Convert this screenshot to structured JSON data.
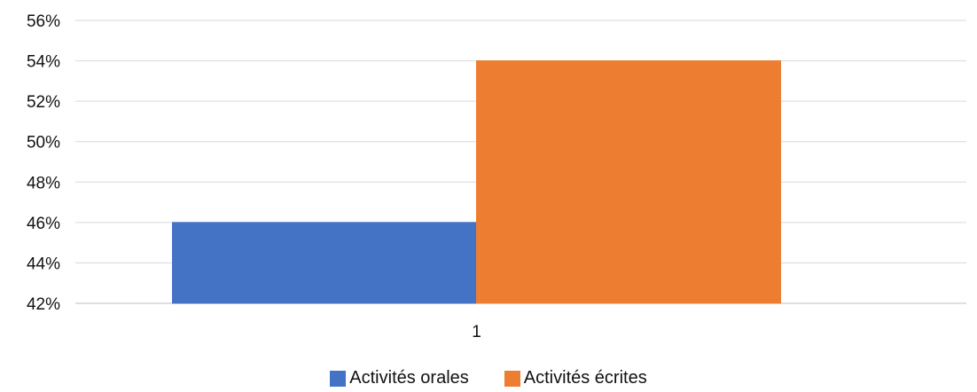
{
  "chart_data": {
    "type": "bar",
    "categories": [
      "1"
    ],
    "series": [
      {
        "name": "Activités orales",
        "values": [
          0.46
        ],
        "color": "#4472C4"
      },
      {
        "name": "Activités écrites",
        "values": [
          0.54
        ],
        "color": "#ED7D31"
      }
    ],
    "y_ticks": [
      "42%",
      "44%",
      "46%",
      "48%",
      "50%",
      "52%",
      "54%",
      "56%"
    ],
    "ylim": [
      0.42,
      0.56
    ],
    "grid": true,
    "legend_position": "bottom"
  }
}
